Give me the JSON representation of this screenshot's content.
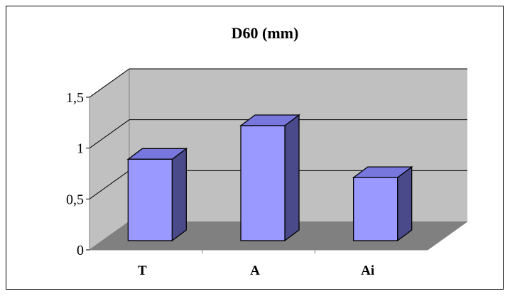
{
  "chart_data": {
    "type": "bar",
    "title": "D60 (mm)",
    "categories": [
      "T",
      "A",
      "Ai"
    ],
    "values": [
      0.8,
      1.13,
      0.62
    ],
    "ylim": [
      0,
      1.5
    ],
    "yticks": [
      "0",
      "0,5",
      "1",
      "1,5"
    ],
    "grid": true,
    "legend": "none",
    "colors": {
      "bar_front": "#9999ff",
      "bar_top": "#7777dd",
      "bar_side": "#4a4a8a",
      "wall": "#c0c0c0",
      "floor": "#808080"
    }
  }
}
